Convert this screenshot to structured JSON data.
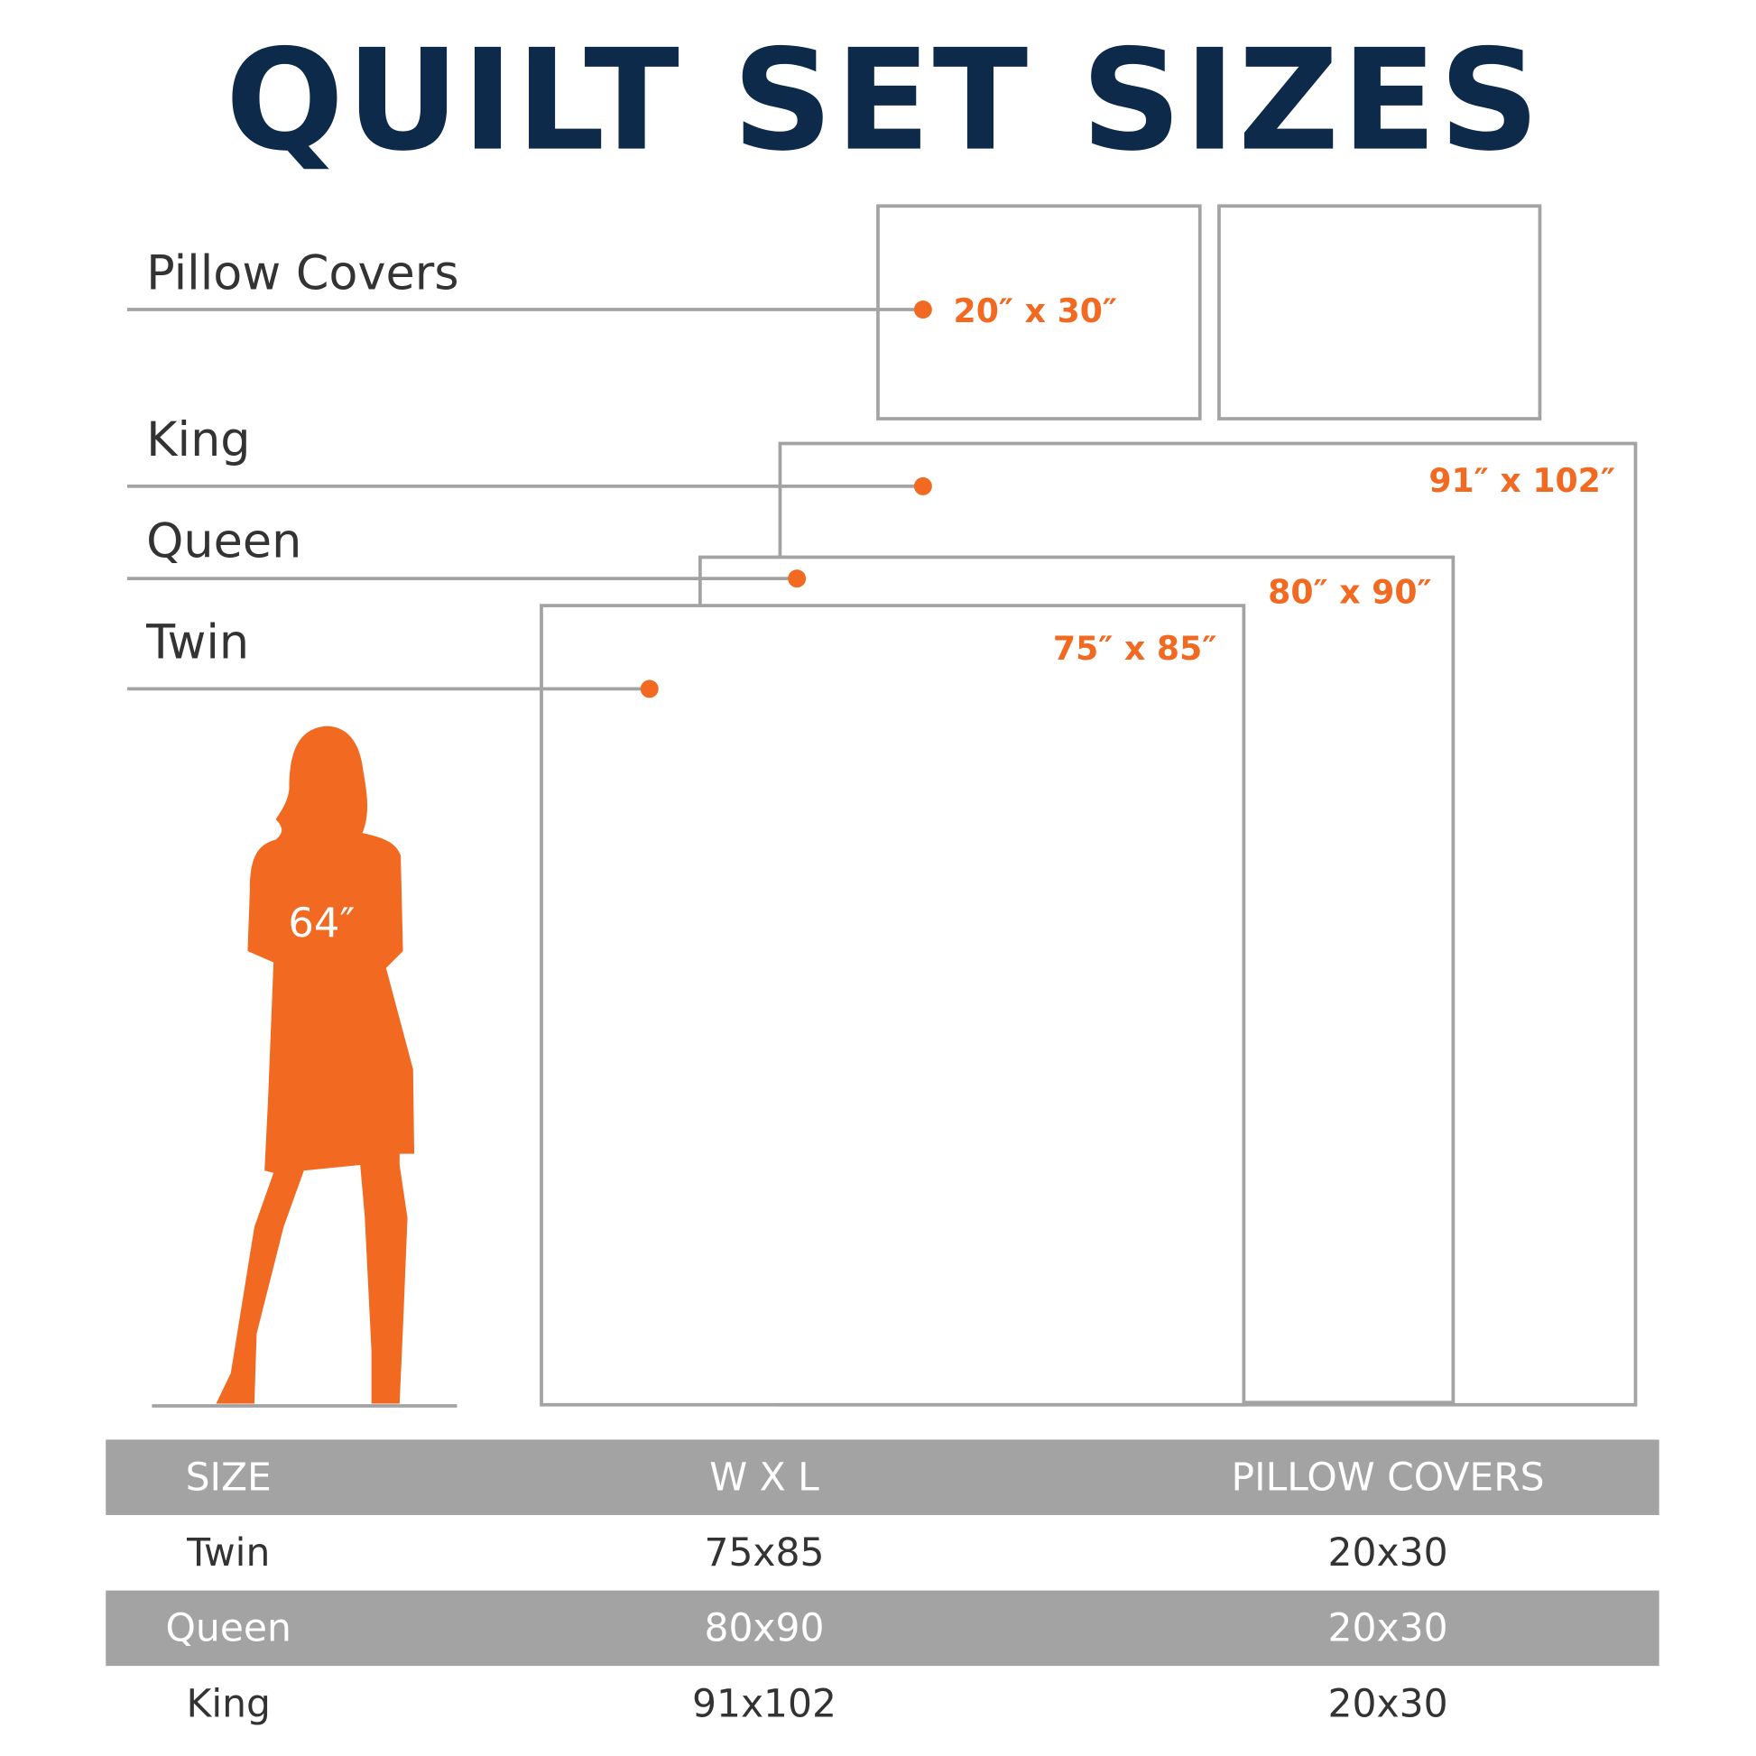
{
  "title": "QUILT SET SIZES",
  "colors": {
    "accent": "#f26a21",
    "title": "#0e2a4a",
    "outline": "#a3a3a3"
  },
  "diagram": {
    "labels": {
      "pillow": "Pillow Covers",
      "king": "King",
      "queen": "Queen",
      "twin": "Twin"
    },
    "dimensions": {
      "pillow": "20″ x 30″",
      "king": "91″ x 102″",
      "queen": "80″ x 90″",
      "twin": "75″ x 85″"
    },
    "person_height": "64″",
    "person_icon": "woman-silhouette"
  },
  "table": {
    "headers": [
      "SIZE",
      "W X L",
      "PILLOW COVERS"
    ],
    "rows": [
      [
        "Twin",
        "75x85",
        "20x30"
      ],
      [
        "Queen",
        "80x90",
        "20x30"
      ],
      [
        "King",
        "91x102",
        "20x30"
      ]
    ]
  }
}
